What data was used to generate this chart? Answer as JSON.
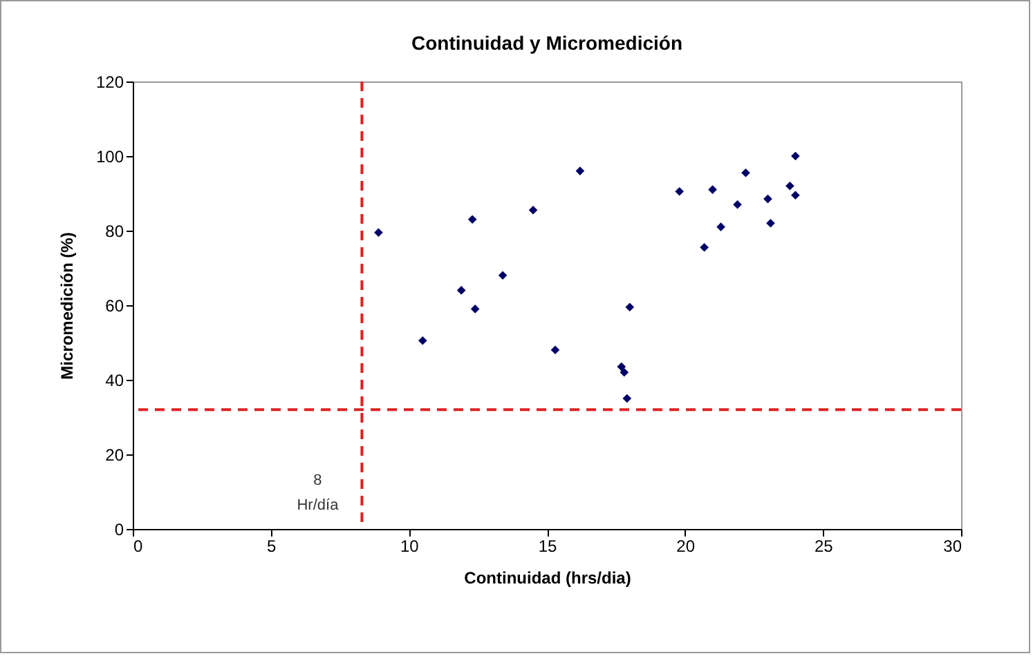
{
  "chart_data": {
    "type": "scatter",
    "title": "Continuidad y Micromedición",
    "xlabel": "Continuidad (hrs/dia)",
    "ylabel": "Micromedición (%)",
    "x": [
      8.9,
      12.3,
      14.5,
      16.2,
      19.8,
      21.0,
      22.2,
      21.9,
      23.0,
      23.8,
      24.0,
      24.0,
      21.3,
      23.1,
      20.7,
      10.5,
      11.9,
      12.4,
      13.4,
      15.3,
      17.7,
      17.8,
      17.9,
      18.0
    ],
    "series": [
      {
        "color": "#000066",
        "values": [
          79.5,
          83,
          85.5,
          96,
          90.5,
          91,
          95.5,
          87,
          88.5,
          92,
          100,
          89.5,
          81,
          82,
          75.5,
          50.5,
          64,
          59,
          68,
          48,
          43.5,
          42,
          35,
          59.5
        ]
      }
    ],
    "marker": "diamond",
    "grid": false,
    "xlim": [
      0,
      30
    ],
    "xticks": [
      0,
      5,
      10,
      15,
      20,
      25,
      30
    ],
    "ylim": [
      0,
      120
    ],
    "yticks": [
      0,
      20,
      40,
      60,
      80,
      100,
      120
    ],
    "ref_lines": [
      {
        "axis": "x",
        "value": 8.3,
        "label": "8\nHr/día",
        "color": "#e02020",
        "line_style": "dashed"
      },
      {
        "axis": "y",
        "value": 32,
        "color": "#e02020",
        "line_style": "dashed"
      }
    ]
  }
}
